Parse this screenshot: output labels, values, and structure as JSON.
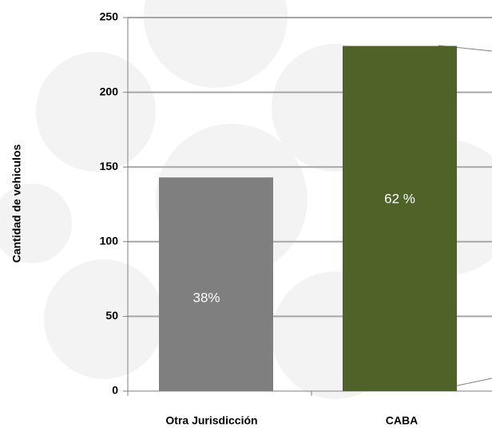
{
  "chart_data": {
    "type": "bar",
    "y_label": "Cantidad de vehiculos",
    "categories": [
      "Otra Jurisdicción",
      "CABA"
    ],
    "values": [
      143,
      231
    ],
    "colors": [
      "#7f7f7f",
      "#4f6228"
    ],
    "percent_labels": [
      "38%",
      "62 %"
    ],
    "ylim": [
      0,
      250
    ],
    "yticks": [
      0,
      50,
      100,
      150,
      200,
      250
    ],
    "grid": true
  }
}
